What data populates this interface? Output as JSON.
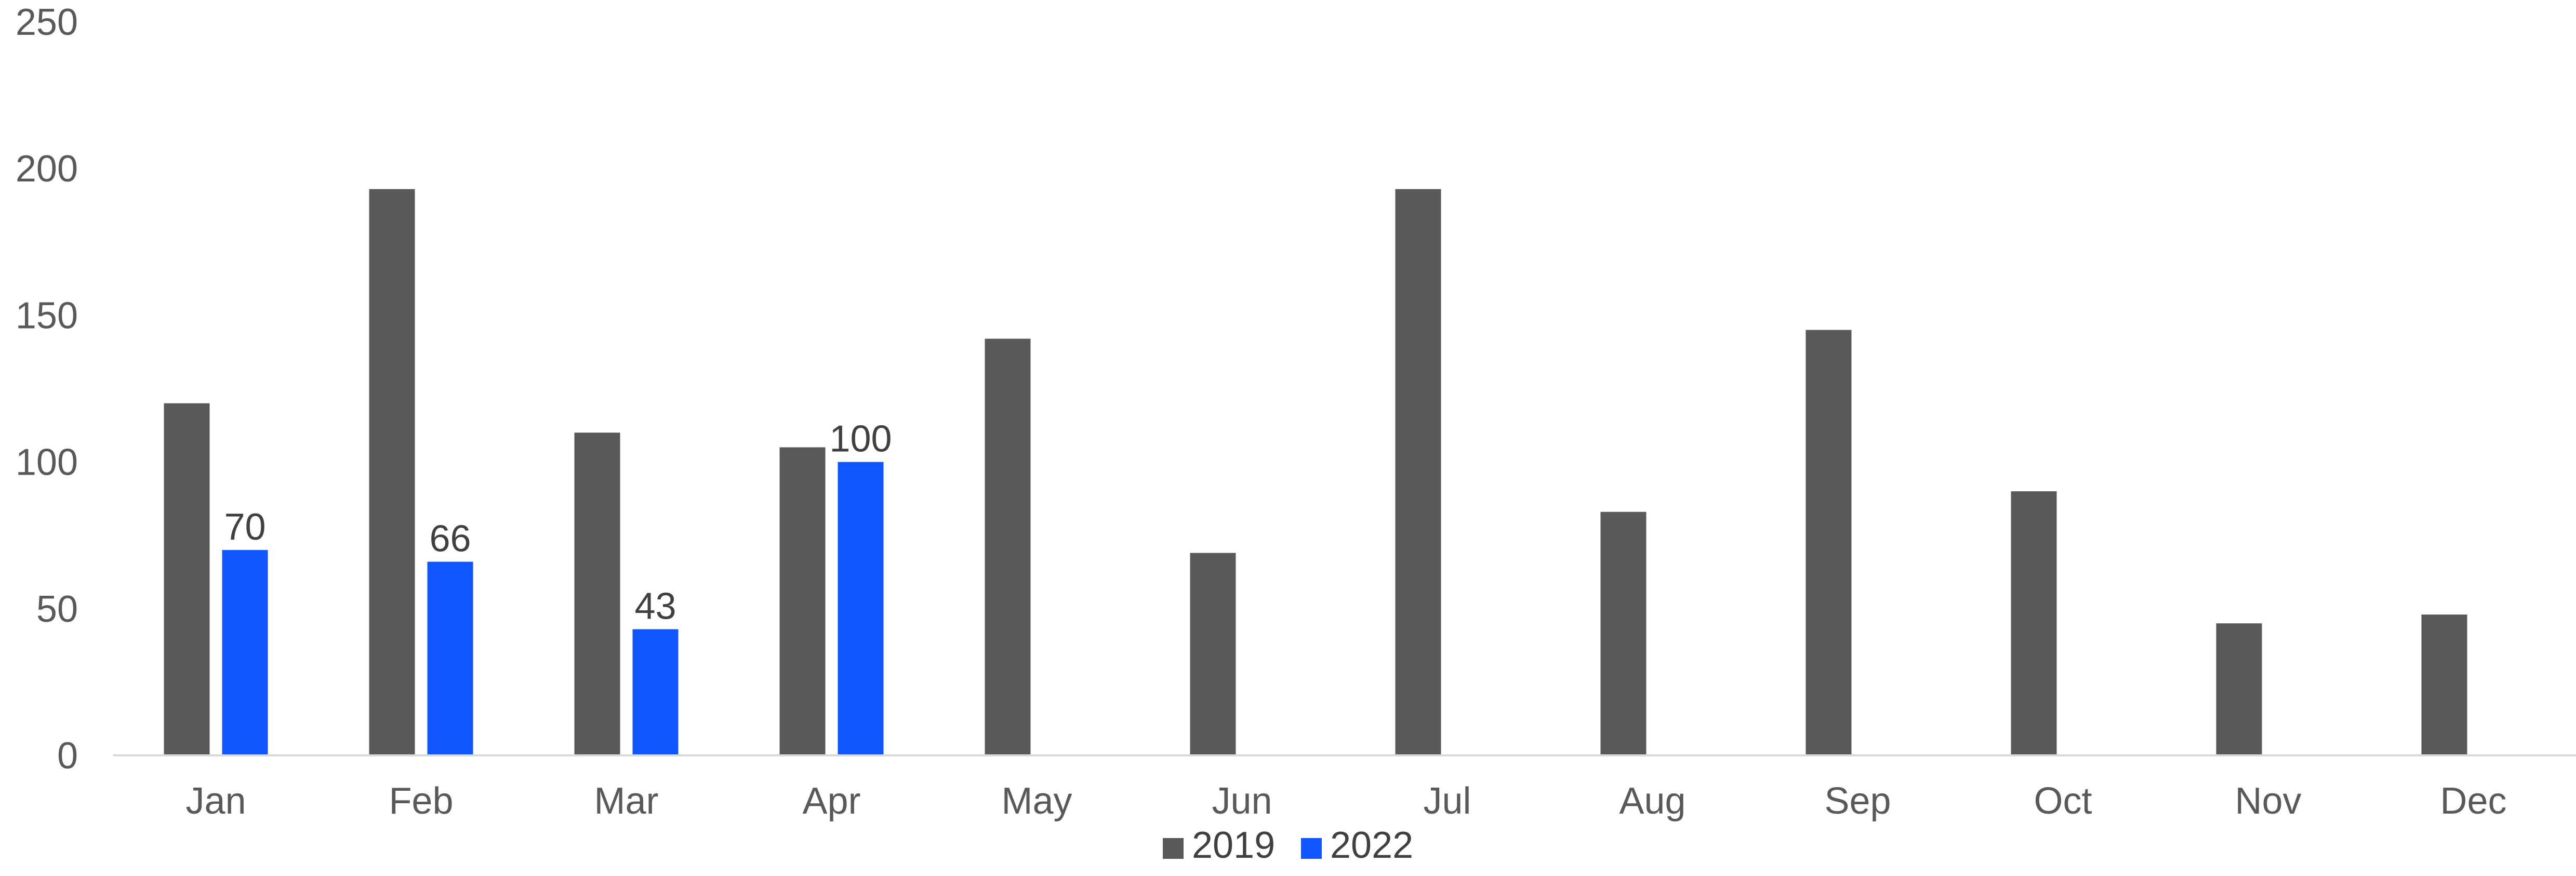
{
  "chart_data": {
    "type": "bar",
    "categories": [
      "Jan",
      "Feb",
      "Mar",
      "Apr",
      "May",
      "Jun",
      "Jul",
      "Aug",
      "Sep",
      "Oct",
      "Nov",
      "Dec"
    ],
    "series": [
      {
        "name": "2019",
        "color": "#595959",
        "values": [
          120,
          193,
          110,
          105,
          142,
          69,
          193,
          83,
          145,
          90,
          45,
          48
        ],
        "show_data_labels": false
      },
      {
        "name": "2022",
        "color": "#1155FF",
        "values": [
          70,
          66,
          43,
          100,
          null,
          null,
          null,
          null,
          null,
          null,
          null,
          null
        ],
        "show_data_labels": true
      }
    ],
    "title": "",
    "xlabel": "",
    "ylabel": "",
    "ylim": [
      0,
      250
    ],
    "yticks": [
      0,
      50,
      100,
      150,
      200,
      250
    ],
    "grid": false,
    "legend_position": "bottom",
    "colors": {
      "axis_line": "#D9D9D9",
      "tick_text": "#595959",
      "label_text": "#404040"
    }
  }
}
